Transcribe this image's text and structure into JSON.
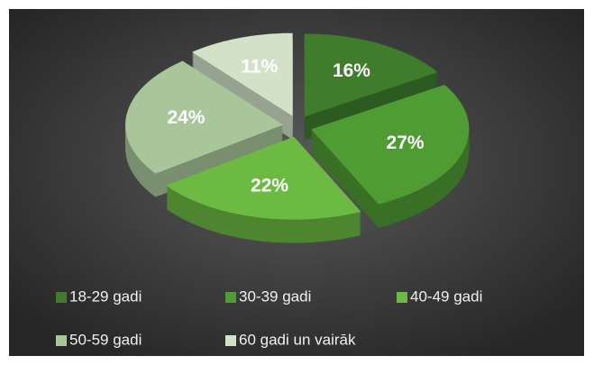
{
  "chart_data": {
    "type": "pie",
    "categories": [
      "18-29 gadi",
      "30-39 gadi",
      "40-49 gadi",
      "50-59 gadi",
      "60 gadi un vairāk"
    ],
    "values": [
      16,
      27,
      22,
      24,
      11
    ],
    "value_labels": [
      "16%",
      "27%",
      "22%",
      "24%",
      "11%"
    ],
    "colors": [
      "#3f7d2c",
      "#4f9c33",
      "#6cba42",
      "#a8c69a",
      "#d2e1c8"
    ],
    "legend": "bottom"
  }
}
